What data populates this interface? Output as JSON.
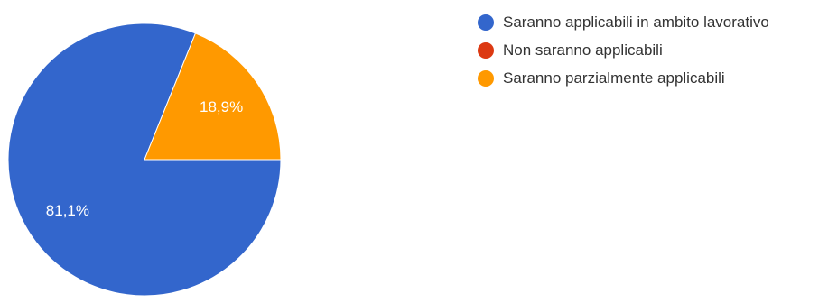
{
  "chart_data": {
    "type": "pie",
    "categories": [
      "Saranno applicabili in ambito lavorativo",
      "Non saranno applicabili",
      "Saranno parzialmente applicabili"
    ],
    "values": [
      81.1,
      0,
      18.9
    ],
    "labels": [
      "81,1%",
      "",
      "18,9%"
    ],
    "colors": [
      "#3366cc",
      "#dc3912",
      "#ff9900"
    ],
    "legend_position": "right"
  }
}
